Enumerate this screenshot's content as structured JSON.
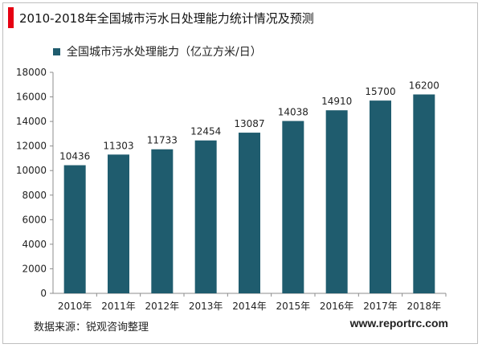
{
  "header": {
    "title": "2010-2018年全国城市污水日处理能力统计情况及预测",
    "accent_color": "#e60012"
  },
  "footer": {
    "source": "数据来源：锐观咨询整理",
    "website": "www.reportrc.com"
  },
  "chart_data": {
    "type": "bar",
    "categories": [
      "2010年",
      "2011年",
      "2012年",
      "2013年",
      "2014年",
      "2015年",
      "2016年",
      "2017年",
      "2018年"
    ],
    "series": [
      {
        "name": "全国城市污水处理能力（亿立方米/日）",
        "values": [
          10436,
          11303,
          11733,
          12454,
          13087,
          14038,
          14910,
          15700,
          16200
        ],
        "color": "#1f5c6e"
      }
    ],
    "ylim": [
      0,
      18000
    ],
    "yticks": [
      0,
      2000,
      4000,
      6000,
      8000,
      10000,
      12000,
      14000,
      16000,
      18000
    ],
    "grid": false,
    "legend_position": "top-left",
    "data_labels": true
  }
}
